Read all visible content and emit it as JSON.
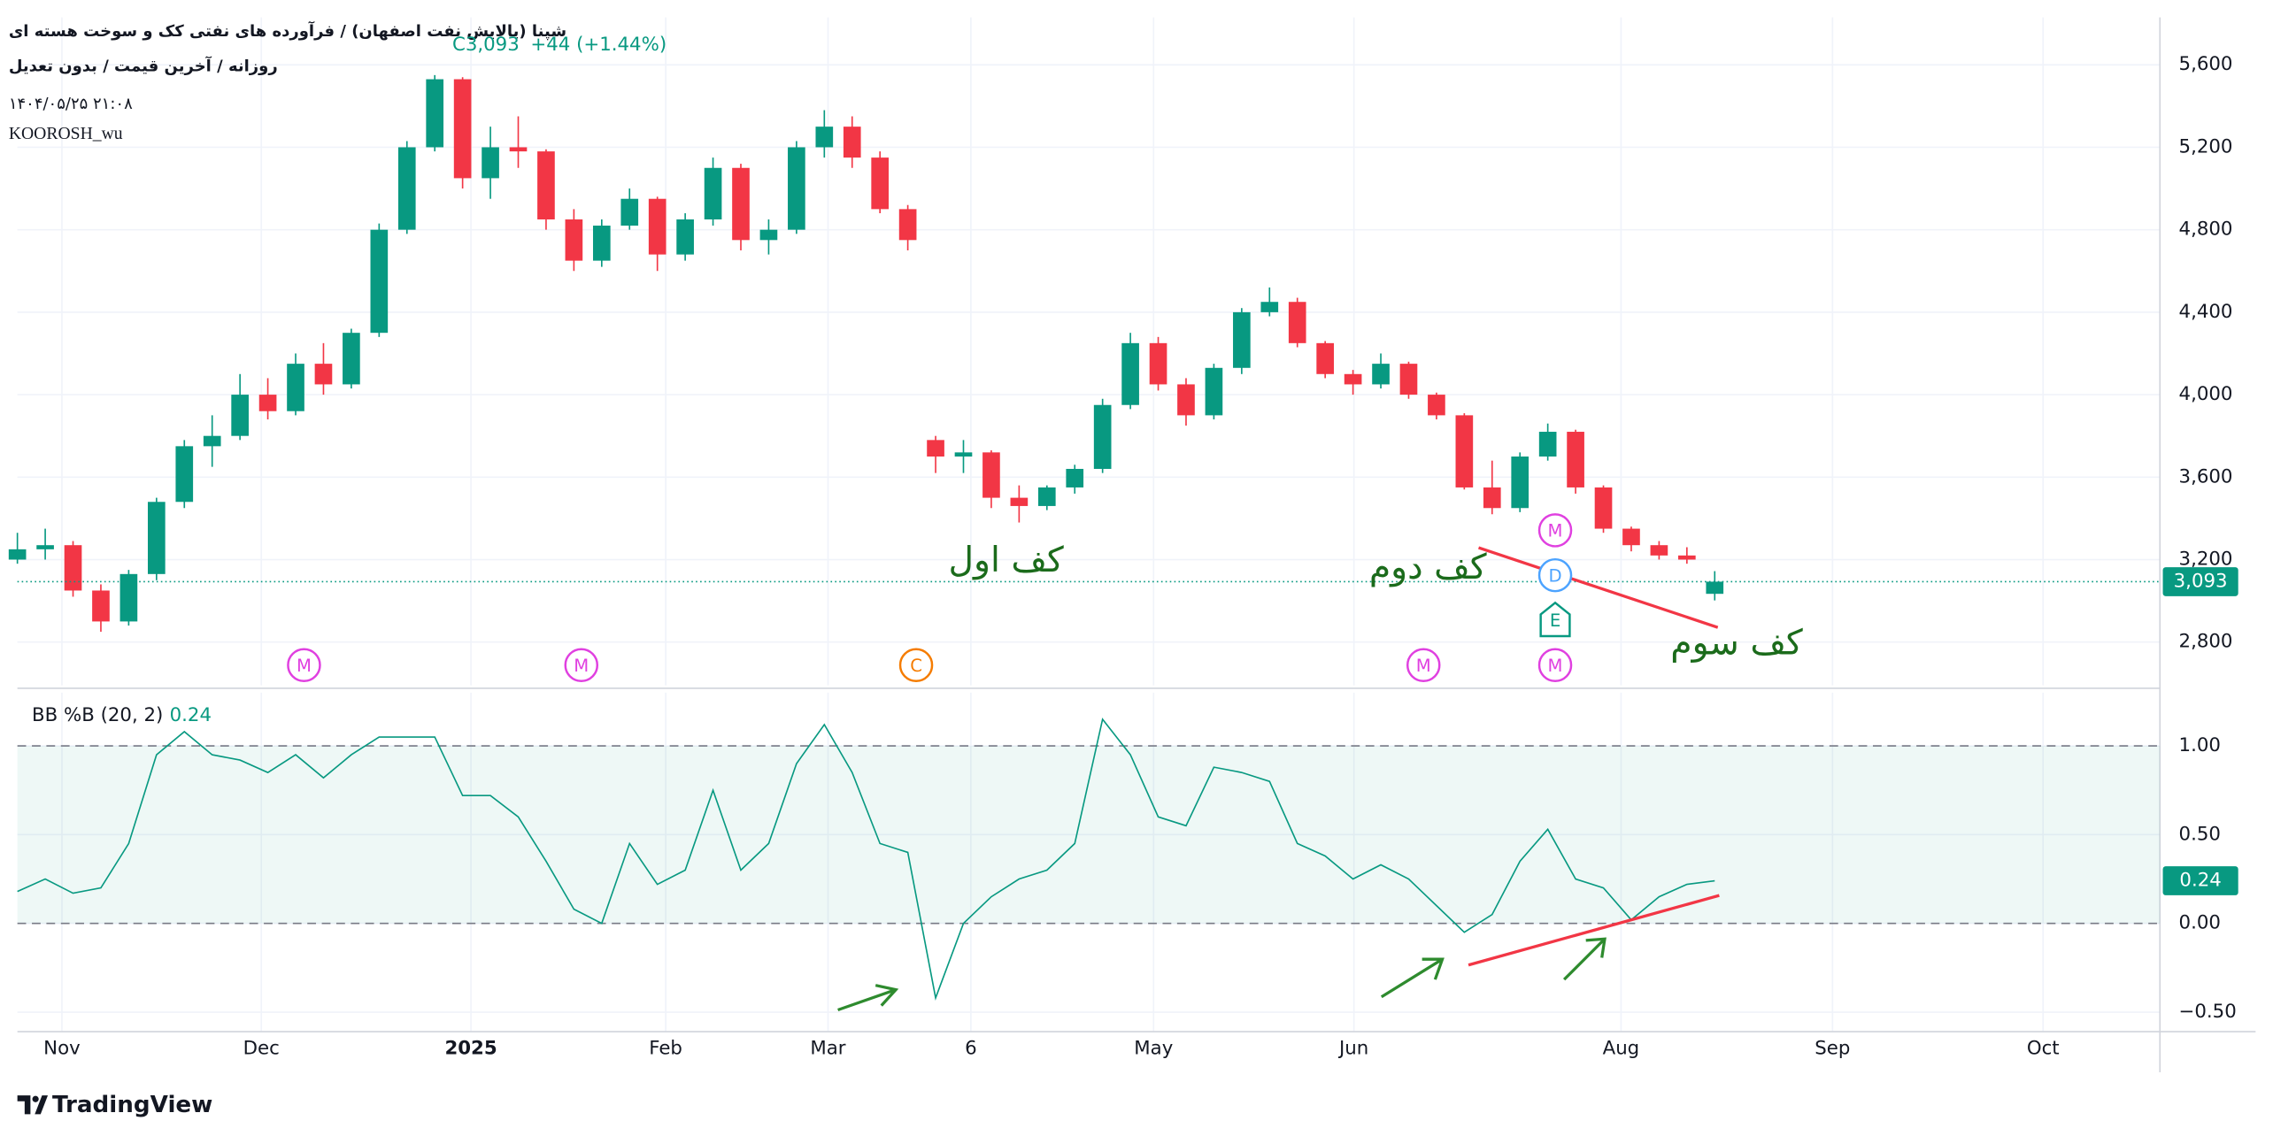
{
  "header": {
    "title": "شپنا (پالایش نفت اصفهان) / فرآورده های نفتی کک و سوخت هسته ای",
    "subtitle": "روزانه / آخرین قیمت / بدون تعدیل",
    "date": "۱۴۰۴/۰۵/۲۵ ۲۱:۰۸",
    "author": "KOOROSH_wu",
    "close_label": "C3,093",
    "change_label": "+44 (+1.44%)"
  },
  "chart_data": [
    {
      "type": "candlestick",
      "x": [
        0,
        3,
        6,
        9,
        12,
        15,
        18,
        21,
        24,
        27,
        30,
        33,
        36,
        39,
        42,
        45,
        48,
        51,
        54,
        57,
        60,
        63,
        66,
        69,
        72,
        75,
        78,
        81,
        84,
        87,
        90,
        93,
        96,
        99,
        102,
        105,
        108,
        111,
        114,
        117,
        120,
        123,
        126,
        129,
        132,
        135,
        138,
        141,
        144,
        147,
        150,
        153,
        156,
        159,
        162,
        165,
        168,
        171,
        174,
        177,
        180,
        183
      ],
      "candles": [
        [
          3200,
          3330,
          3180,
          3250
        ],
        [
          3250,
          3350,
          3200,
          3270
        ],
        [
          3270,
          3290,
          3020,
          3050
        ],
        [
          3050,
          3080,
          2850,
          2900
        ],
        [
          2900,
          3150,
          2880,
          3130
        ],
        [
          3130,
          3500,
          3100,
          3480
        ],
        [
          3480,
          3780,
          3450,
          3750
        ],
        [
          3750,
          3900,
          3650,
          3800
        ],
        [
          3800,
          4100,
          3780,
          4000
        ],
        [
          4000,
          4080,
          3880,
          3920
        ],
        [
          3920,
          4200,
          3900,
          4150
        ],
        [
          4150,
          4250,
          4000,
          4050
        ],
        [
          4050,
          4320,
          4030,
          4300
        ],
        [
          4300,
          4830,
          4280,
          4800
        ],
        [
          4800,
          5230,
          4780,
          5200
        ],
        [
          5200,
          5550,
          5180,
          5530
        ],
        [
          5530,
          5540,
          5000,
          5050
        ],
        [
          5050,
          5300,
          4950,
          5200
        ],
        [
          5200,
          5350,
          5100,
          5180
        ],
        [
          5180,
          5190,
          4800,
          4850
        ],
        [
          4850,
          4900,
          4600,
          4650
        ],
        [
          4650,
          4850,
          4620,
          4820
        ],
        [
          4820,
          5000,
          4800,
          4950
        ],
        [
          4950,
          4960,
          4600,
          4680
        ],
        [
          4680,
          4880,
          4650,
          4850
        ],
        [
          4850,
          5150,
          4820,
          5100
        ],
        [
          5100,
          5120,
          4700,
          4750
        ],
        [
          4750,
          4850,
          4680,
          4800
        ],
        [
          4800,
          5230,
          4780,
          5200
        ],
        [
          5200,
          5380,
          5150,
          5300
        ],
        [
          5300,
          5350,
          5100,
          5150
        ],
        [
          5150,
          5180,
          4880,
          4900
        ],
        [
          4900,
          4920,
          4700,
          4750
        ],
        [
          3780,
          3800,
          3620,
          3700
        ],
        [
          3700,
          3780,
          3620,
          3720
        ],
        [
          3720,
          3730,
          3450,
          3500
        ],
        [
          3500,
          3560,
          3380,
          3460
        ],
        [
          3460,
          3560,
          3440,
          3550
        ],
        [
          3550,
          3660,
          3520,
          3640
        ],
        [
          3640,
          3980,
          3620,
          3950
        ],
        [
          3950,
          4300,
          3930,
          4250
        ],
        [
          4250,
          4280,
          4020,
          4050
        ],
        [
          4050,
          4080,
          3850,
          3900
        ],
        [
          3900,
          4150,
          3880,
          4130
        ],
        [
          4130,
          4420,
          4100,
          4400
        ],
        [
          4400,
          4520,
          4380,
          4450
        ],
        [
          4450,
          4470,
          4230,
          4250
        ],
        [
          4250,
          4260,
          4080,
          4100
        ],
        [
          4100,
          4120,
          4000,
          4050
        ],
        [
          4050,
          4200,
          4030,
          4150
        ],
        [
          4150,
          4160,
          3980,
          4000
        ],
        [
          4000,
          4010,
          3880,
          3900
        ],
        [
          3900,
          3910,
          3540,
          3550
        ],
        [
          3550,
          3680,
          3420,
          3450
        ],
        [
          3450,
          3720,
          3430,
          3700
        ],
        [
          3700,
          3860,
          3680,
          3820
        ],
        [
          3820,
          3830,
          3520,
          3550
        ],
        [
          3550,
          3560,
          3330,
          3350
        ],
        [
          3350,
          3360,
          3240,
          3270
        ],
        [
          3270,
          3290,
          3200,
          3220
        ],
        [
          3220,
          3260,
          3180,
          3200
        ],
        [
          3034,
          3144,
          3002,
          3093
        ]
      ],
      "last_label": "3,093",
      "up_color": "#089981",
      "down_color": "#f23645",
      "xlim": [
        0,
        231
      ],
      "xticks": [
        {
          "value": 4.8,
          "label": "Nov"
        },
        {
          "value": 26.3,
          "label": "Dec"
        },
        {
          "value": 48.9,
          "label": "2025"
        },
        {
          "value": 69.9,
          "label": "Feb"
        },
        {
          "value": 87.4,
          "label": "Mar"
        },
        {
          "value": 102.8,
          "label": "6"
        },
        {
          "value": 122.5,
          "label": "May"
        },
        {
          "value": 144.1,
          "label": "Jun"
        },
        {
          "value": 172.9,
          "label": "Aug"
        },
        {
          "value": 195.7,
          "label": "Sep"
        },
        {
          "value": 218.4,
          "label": "Oct"
        }
      ],
      "ylim": [
        2590,
        5830
      ],
      "yticks": [
        {
          "value": 2800,
          "label": "2,800"
        },
        {
          "value": 3200,
          "label": "3,200"
        },
        {
          "value": 3600,
          "label": "3,600"
        },
        {
          "value": 4000,
          "label": "4,000"
        },
        {
          "value": 4400,
          "label": "4,400"
        },
        {
          "value": 4800,
          "label": "4,800"
        },
        {
          "value": 5200,
          "label": "5,200"
        },
        {
          "value": 5600,
          "label": "5,600"
        }
      ],
      "grid": true,
      "markers": [
        {
          "label": "M",
          "x": 30.9
        },
        {
          "label": "M",
          "x": 60.8
        },
        {
          "label": "C",
          "x": 96.9
        },
        {
          "label": "M",
          "x": 151.6
        },
        {
          "label": "M",
          "x": 165.8
        },
        {
          "label": "E",
          "x": 165.8
        },
        {
          "label": "D",
          "x": 165.8
        },
        {
          "label": "M",
          "x": 165.8
        }
      ],
      "marker_colors": {
        "M": "#e040e0",
        "C": "#f57c00",
        "D": "#4ca3ff",
        "E": "#089981"
      }
    },
    {
      "type": "line",
      "series": [
        {
          "name": "BB %B (20, 2)",
          "color": "#089981",
          "values": [
            0.18,
            0.25,
            0.17,
            0.2,
            0.45,
            0.95,
            1.08,
            0.95,
            0.92,
            0.85,
            0.95,
            0.82,
            0.95,
            1.05,
            1.05,
            1.05,
            0.72,
            0.72,
            0.6,
            0.35,
            0.08,
            0,
            0.45,
            0.22,
            0.3,
            0.75,
            0.3,
            0.45,
            0.9,
            1.12,
            0.85,
            0.45,
            0.4,
            -0.42,
            0,
            0.15,
            0.25,
            0.3,
            0.45,
            1.15,
            0.95,
            0.6,
            0.55,
            0.88,
            0.85,
            0.8,
            0.45,
            0.38,
            0.25,
            0.33,
            0.25,
            0.1,
            -0.05,
            0.05,
            0.35,
            0.53,
            0.25,
            0.2,
            0.02,
            0.15,
            0.22,
            0.24
          ],
          "value_labels": {
            "61": "0.24"
          }
        }
      ],
      "ylim": [
        -0.61,
        1.3
      ],
      "yticks": [
        {
          "value": -0.5,
          "label": "−0.50"
        },
        {
          "value": 0,
          "label": "0.00"
        },
        {
          "value": 0.5,
          "label": "0.50"
        },
        {
          "value": 1,
          "label": "1.00"
        }
      ],
      "bands": [
        0,
        1
      ],
      "band_color": "#089981",
      "grid": true
    }
  ],
  "annotations": [
    "کف اول",
    "کف دوم",
    "کف سوم"
  ],
  "footer": {
    "brand": "TradingView"
  }
}
